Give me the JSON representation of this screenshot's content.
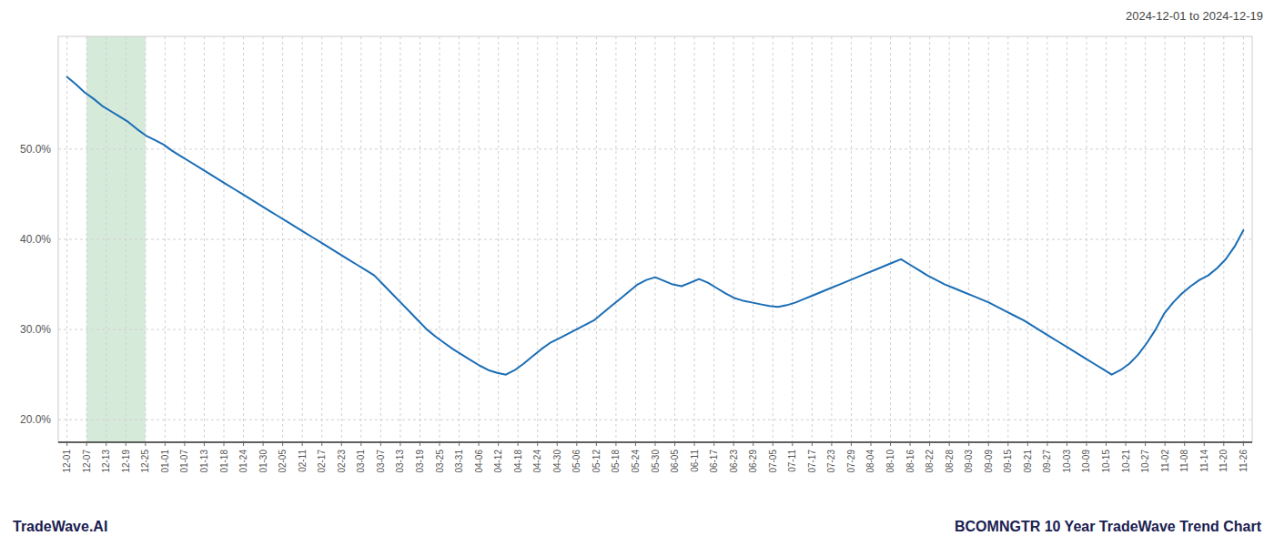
{
  "chart_data": {
    "type": "line",
    "title": "BCOMNGTR 10 Year TradeWave Trend Chart",
    "subtitle": "2024-12-01 to 2024-12-19",
    "annotations": [
      "TradeWave.AI"
    ],
    "color": "#1a6db5",
    "grid": true,
    "highlight": {
      "start": "12-07",
      "end": "12-25",
      "color": "#d6ead9"
    },
    "xlim": [
      -1,
      135
    ],
    "xticks": [
      {
        "value": 0,
        "label": "12-01"
      },
      {
        "value": 2.2333,
        "label": "12-07"
      },
      {
        "value": 4.4667,
        "label": "12-13"
      },
      {
        "value": 6.7,
        "label": "12-19"
      },
      {
        "value": 8.9333,
        "label": "12-25"
      },
      {
        "value": 11.1667,
        "label": "01-01"
      },
      {
        "value": 13.4,
        "label": "01-07"
      },
      {
        "value": 15.6333,
        "label": "01-13"
      },
      {
        "value": 17.8667,
        "label": "01-18"
      },
      {
        "value": 20.1,
        "label": "01-24"
      },
      {
        "value": 22.3333,
        "label": "01-30"
      },
      {
        "value": 24.5667,
        "label": "02-05"
      },
      {
        "value": 26.8,
        "label": "02-11"
      },
      {
        "value": 29.0333,
        "label": "02-17"
      },
      {
        "value": 31.2667,
        "label": "02-23"
      },
      {
        "value": 33.5,
        "label": "03-01"
      },
      {
        "value": 35.7333,
        "label": "03-07"
      },
      {
        "value": 37.9667,
        "label": "03-13"
      },
      {
        "value": 40.2,
        "label": "03-19"
      },
      {
        "value": 42.4333,
        "label": "03-25"
      },
      {
        "value": 44.6667,
        "label": "03-31"
      },
      {
        "value": 46.9,
        "label": "04-06"
      },
      {
        "value": 49.1333,
        "label": "04-12"
      },
      {
        "value": 51.3667,
        "label": "04-18"
      },
      {
        "value": 53.6,
        "label": "04-24"
      },
      {
        "value": 55.8333,
        "label": "04-30"
      },
      {
        "value": 58.0667,
        "label": "05-06"
      },
      {
        "value": 60.3,
        "label": "05-12"
      },
      {
        "value": 62.5333,
        "label": "05-18"
      },
      {
        "value": 64.7667,
        "label": "05-24"
      },
      {
        "value": 67,
        "label": "05-30"
      },
      {
        "value": 69.2333,
        "label": "06-05"
      },
      {
        "value": 71.4667,
        "label": "06-11"
      },
      {
        "value": 73.7,
        "label": "06-17"
      },
      {
        "value": 75.9333,
        "label": "06-23"
      },
      {
        "value": 78.1667,
        "label": "06-29"
      },
      {
        "value": 80.4,
        "label": "07-05"
      },
      {
        "value": 82.6333,
        "label": "07-11"
      },
      {
        "value": 84.8667,
        "label": "07-17"
      },
      {
        "value": 87.1,
        "label": "07-23"
      },
      {
        "value": 89.3333,
        "label": "07-29"
      },
      {
        "value": 91.5667,
        "label": "08-04"
      },
      {
        "value": 93.8,
        "label": "08-10"
      },
      {
        "value": 96.0333,
        "label": "08-16"
      },
      {
        "value": 98.2667,
        "label": "08-22"
      },
      {
        "value": 100.5,
        "label": "08-28"
      },
      {
        "value": 102.7333,
        "label": "09-03"
      },
      {
        "value": 104.9667,
        "label": "09-09"
      },
      {
        "value": 107.2,
        "label": "09-15"
      },
      {
        "value": 109.4333,
        "label": "09-21"
      },
      {
        "value": 111.6667,
        "label": "09-27"
      },
      {
        "value": 113.9,
        "label": "10-03"
      },
      {
        "value": 116.1333,
        "label": "10-09"
      },
      {
        "value": 118.3667,
        "label": "10-15"
      },
      {
        "value": 120.6,
        "label": "10-21"
      },
      {
        "value": 122.8333,
        "label": "10-27"
      },
      {
        "value": 125.0667,
        "label": "11-02"
      },
      {
        "value": 127.3,
        "label": "11-08"
      },
      {
        "value": 129.5333,
        "label": "11-14"
      },
      {
        "value": 131.7667,
        "label": "11-20"
      },
      {
        "value": 134,
        "label": "11-26"
      }
    ],
    "ylim": [
      0.175,
      0.625
    ],
    "yticks": [
      {
        "value": 0.2,
        "label": "20.0%"
      },
      {
        "value": 0.3,
        "label": "30.0%"
      },
      {
        "value": 0.4,
        "label": "40.0%"
      },
      {
        "value": 0.5,
        "label": "50.0%"
      }
    ],
    "values": [
      0.58,
      0.572,
      0.563,
      0.556,
      0.548,
      0.542,
      0.536,
      0.53,
      0.522,
      0.515,
      0.51,
      0.505,
      0.498,
      0.492,
      0.486,
      0.48,
      0.474,
      0.468,
      0.462,
      0.456,
      0.45,
      0.444,
      0.438,
      0.432,
      0.426,
      0.42,
      0.414,
      0.408,
      0.402,
      0.396,
      0.39,
      0.384,
      0.378,
      0.372,
      0.366,
      0.36,
      0.35,
      0.34,
      0.33,
      0.32,
      0.31,
      0.3,
      0.292,
      0.285,
      0.278,
      0.272,
      0.266,
      0.26,
      0.255,
      0.252,
      0.25,
      0.255,
      0.262,
      0.27,
      0.278,
      0.285,
      0.29,
      0.295,
      0.3,
      0.305,
      0.31,
      0.318,
      0.326,
      0.334,
      0.342,
      0.35,
      0.355,
      0.358,
      0.354,
      0.35,
      0.348,
      0.352,
      0.356,
      0.352,
      0.346,
      0.34,
      0.335,
      0.332,
      0.33,
      0.328,
      0.326,
      0.325,
      0.327,
      0.33,
      0.334,
      0.338,
      0.342,
      0.346,
      0.35,
      0.354,
      0.358,
      0.362,
      0.366,
      0.37,
      0.374,
      0.378,
      0.372,
      0.366,
      0.36,
      0.355,
      0.35,
      0.346,
      0.342,
      0.338,
      0.334,
      0.33,
      0.325,
      0.32,
      0.315,
      0.31,
      0.304,
      0.298,
      0.292,
      0.286,
      0.28,
      0.274,
      0.268,
      0.262,
      0.256,
      0.25,
      0.255,
      0.262,
      0.272,
      0.285,
      0.3,
      0.318,
      0.33,
      0.34,
      0.348,
      0.355,
      0.36,
      0.368,
      0.378,
      0.392,
      0.41
    ]
  }
}
